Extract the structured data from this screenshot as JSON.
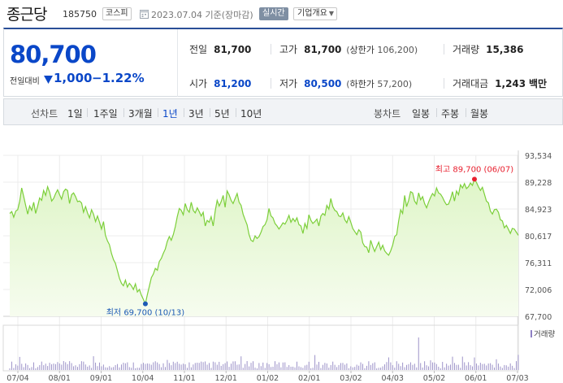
{
  "header": {
    "stock_name": "종근당",
    "stock_code": "185750",
    "market": "코스피",
    "date_text": "2023.07.04 기준(장마감)",
    "realtime_label": "실시간",
    "overview_label": "기업개요"
  },
  "summary": {
    "current_price": "80,700",
    "change_label": "전일대비",
    "change_value": "1,000",
    "change_pct": "−1.22%",
    "prev_close_label": "전일",
    "prev_close": "81,700",
    "high_label": "고가",
    "high": "81,700",
    "upper_limit_label": "상한가",
    "upper_limit": "106,200",
    "volume_label": "거래량",
    "volume": "15,386",
    "open_label": "시가",
    "open": "81,200",
    "low_label": "저가",
    "low": "80,500",
    "lower_limit_label": "하한가",
    "lower_limit": "57,200",
    "amount_label": "거래대금",
    "amount": "1,243",
    "amount_unit": "백만"
  },
  "period_tabs": {
    "line_title": "선차트",
    "line": [
      "1일",
      "1주일",
      "3개월",
      "1년",
      "3년",
      "5년",
      "10년"
    ],
    "active": "1년",
    "candle_title": "봉차트",
    "candle": [
      "일봉",
      "주봉",
      "월봉"
    ]
  },
  "colors": {
    "accent_blue": "#0a47c8",
    "line_green": "#7ccf3a",
    "area_green": "#dff5c8",
    "high_red": "#e8202f",
    "low_blue": "#1d5ab5"
  },
  "chart_data": {
    "type": "area",
    "y_ticks": [
      "93,534",
      "89,228",
      "84,923",
      "80,617",
      "76,311",
      "72,006",
      "67,700"
    ],
    "ylim": [
      67700,
      93534
    ],
    "x_ticks": [
      "07/04",
      "08/01",
      "09/01",
      "10/04",
      "11/01",
      "12/01",
      "01/02",
      "02/01",
      "03/02",
      "04/03",
      "05/02",
      "06/01",
      "07/03"
    ],
    "max_annotation": {
      "label": "최고",
      "value_text": "89,700",
      "date_text": "(06/07)",
      "value": 89700
    },
    "min_annotation": {
      "label": "최저",
      "value_text": "69,700",
      "date_text": "(10/13)",
      "value": 69700
    },
    "volume_label": "거래량",
    "series": [
      {
        "values": [
          84200,
          84500,
          83600,
          84600,
          84800,
          86200,
          88300,
          86900,
          85500,
          84100,
          85400,
          84700,
          86000,
          84200,
          85400,
          86700,
          86300,
          87900,
          87100,
          88500,
          87600,
          86200,
          86600,
          87400,
          88000,
          87200,
          86500,
          87700,
          88100,
          87900,
          85800,
          87200,
          87500,
          86900,
          86100,
          86200,
          85900,
          84400,
          85300,
          84300,
          83500,
          84800,
          84100,
          82900,
          83800,
          82800,
          81700,
          82900,
          80700,
          79800,
          79200,
          77800,
          76800,
          76200,
          75000,
          73800,
          73000,
          72600,
          73500,
          72400,
          73000,
          72600,
          72000,
          72900,
          71600,
          72000,
          71100,
          70400,
          69700,
          71200,
          72500,
          73900,
          74500,
          75400,
          75100,
          76500,
          77000,
          77800,
          78500,
          79700,
          80500,
          79900,
          80800,
          82100,
          83700,
          85000,
          84700,
          84000,
          85800,
          84800,
          84400,
          86000,
          84700,
          84300,
          85100,
          84500,
          83800,
          84400,
          82200,
          83100,
          82800,
          83700,
          82200,
          84600,
          86300,
          85400,
          86100,
          87100,
          85200,
          87800,
          87200,
          86300,
          85800,
          86600,
          87400,
          86000,
          85500,
          84100,
          83200,
          82400,
          80800,
          79900,
          79700,
          80600,
          80200,
          80500,
          81200,
          82100,
          82400,
          83200,
          85000,
          83800,
          83500,
          82600,
          82200,
          81700,
          82200,
          82700,
          82500,
          83100,
          83900,
          82800,
          83400,
          82900,
          83500,
          82400,
          82200,
          81000,
          82600,
          81800,
          84000,
          83100,
          82600,
          82900,
          83300,
          82200,
          83800,
          84200,
          83900,
          85500,
          84900,
          86600,
          85300,
          84700,
          84500,
          83800,
          83700,
          84300,
          83200,
          82700,
          83700,
          82800,
          81800,
          81300,
          80800,
          81600,
          81200,
          79500,
          78900,
          78800,
          77900,
          79900,
          78900,
          78100,
          78900,
          79600,
          78400,
          79100,
          78200,
          77800,
          77500,
          78200,
          79100,
          80500,
          80800,
          83000,
          84800,
          84200,
          87100,
          85300,
          86300,
          87700,
          87500,
          86200,
          85700,
          87500,
          86400,
          86900,
          85800,
          85100,
          86000,
          86800,
          87400,
          87000,
          88300,
          87500,
          87300,
          86800,
          86100,
          85600,
          85700,
          86500,
          87700,
          86200,
          87800,
          87200,
          88800,
          88300,
          89000,
          88200,
          88500,
          89100,
          88700,
          89700,
          89200,
          88500,
          87900,
          88400,
          87300,
          86200,
          85900,
          84600,
          84100,
          84800,
          84900,
          84400,
          83200,
          83000,
          81900,
          82300,
          81700,
          81000,
          81800,
          81700,
          81200,
          80700
        ]
      }
    ]
  }
}
